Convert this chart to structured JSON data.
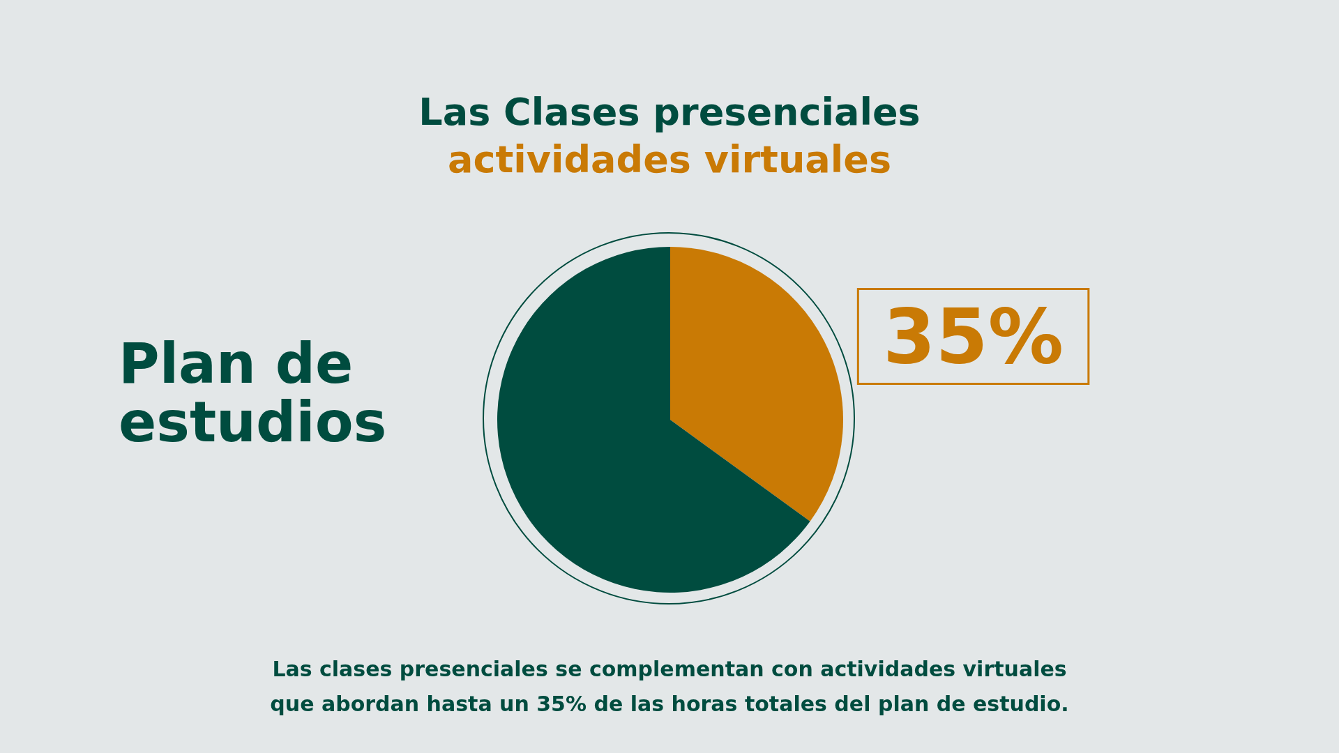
{
  "chart_data": {
    "type": "pie",
    "title": "Las Clases presenciales",
    "subtitle": "actividades virtuales",
    "categories": [
      null,
      null
    ],
    "values": [
      35,
      65
    ],
    "colors": [
      "#c97a05",
      "#004c3f"
    ],
    "value_labels": [
      "35%",
      null
    ],
    "annotations": [
      "Plan de estudios",
      "Las clases presenciales se complementan con actividades virtuales que abordan hasta un 35% de las horas totales del plan de estudio."
    ]
  }
}
